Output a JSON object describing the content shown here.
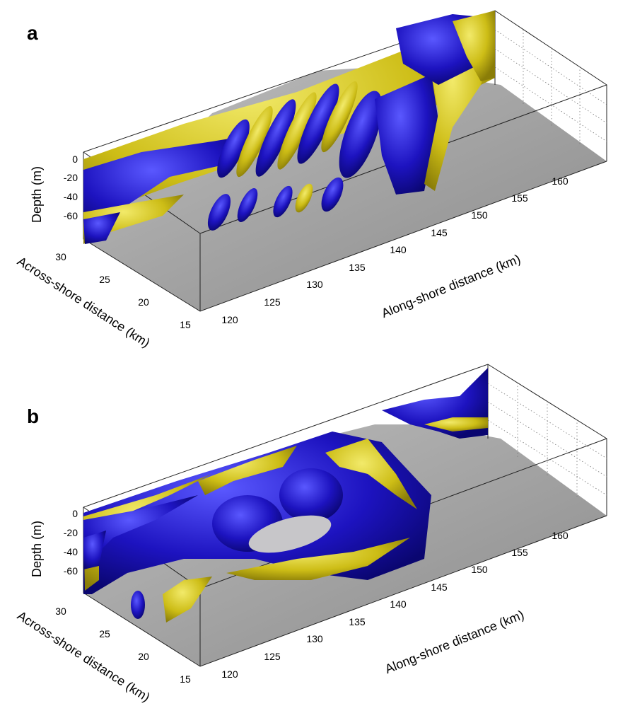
{
  "chart_data": [
    {
      "type": "3d-isosurface",
      "panel_label": "a",
      "xlabel": "Along-shore distance (km)",
      "ylabel": "Across-shore distance (km)",
      "zlabel": "Depth (m)",
      "x_ticks": [
        "120",
        "125",
        "130",
        "135",
        "140",
        "145",
        "150",
        "155",
        "160"
      ],
      "y_ticks": [
        "15",
        "20",
        "25",
        "30"
      ],
      "z_ticks": [
        "0",
        "-20",
        "-40",
        "-60"
      ],
      "xlim": [
        117,
        162
      ],
      "ylim": [
        15,
        32
      ],
      "zlim": [
        -75,
        0
      ],
      "grid": true,
      "colors": {
        "positive": "#d4c51a",
        "negative": "#1d13c0",
        "bathymetry": "#9a9a9a"
      }
    },
    {
      "type": "3d-isosurface",
      "panel_label": "b",
      "xlabel": "Along-shore distance (km)",
      "ylabel": "Across-shore distance (km)",
      "zlabel": "Depth (m)",
      "x_ticks": [
        "120",
        "125",
        "130",
        "135",
        "140",
        "145",
        "150",
        "155",
        "160"
      ],
      "y_ticks": [
        "15",
        "20",
        "25",
        "30"
      ],
      "z_ticks": [
        "0",
        "-20",
        "-40",
        "-60"
      ],
      "xlim": [
        117,
        162
      ],
      "ylim": [
        15,
        32
      ],
      "zlim": [
        -75,
        0
      ],
      "grid": true,
      "colors": {
        "positive": "#d4c51a",
        "negative": "#1d13c0",
        "bathymetry": "#9a9a9a"
      }
    }
  ]
}
